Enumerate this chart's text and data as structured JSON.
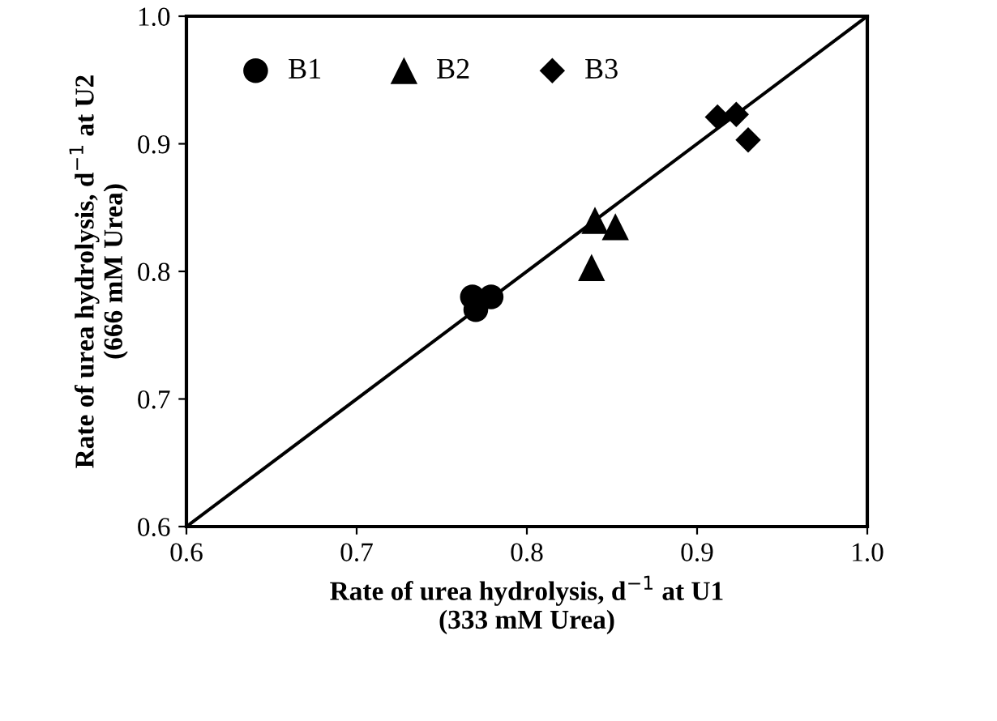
{
  "chart_data": {
    "type": "scatter",
    "xlabel": "Rate of urea hydrolysis, d$^{−1}$ at U1\n(333 mM Urea)",
    "ylabel": "Rate of urea hydrolysis, d$^{−1}$ at U2\n(666 mM Urea)",
    "xlim": [
      0.6,
      1.0
    ],
    "ylim": [
      0.6,
      1.0
    ],
    "xticks": [
      0.6,
      0.7,
      0.8,
      0.9,
      {
        "value": 1.0,
        "label": "1.0"
      }
    ],
    "yticks": [
      0.6,
      0.7,
      0.8,
      0.9,
      {
        "value": 1.0,
        "label": "1.0"
      }
    ],
    "grid": false,
    "legend": "top left",
    "series": [
      {
        "name": "B1",
        "color": "#000000",
        "marker": "circle",
        "x": [
          0.768,
          0.77,
          0.779
        ],
        "values": [
          0.78,
          0.77,
          0.78
        ]
      },
      {
        "name": "B2",
        "color": "#000000",
        "marker": "triangle",
        "x": [
          0.84,
          0.838,
          0.852
        ],
        "values": [
          0.84,
          0.803,
          0.835
        ]
      },
      {
        "name": "B3",
        "color": "#000000",
        "marker": "diamond",
        "x": [
          0.912,
          0.923,
          0.93
        ],
        "values": [
          0.921,
          0.923,
          0.903
        ]
      },
      {
        "type": "line",
        "color": "#000000",
        "marker": "none",
        "x": [
          0.6,
          1.0
        ],
        "values": [
          0.6,
          1.0
        ]
      }
    ]
  }
}
